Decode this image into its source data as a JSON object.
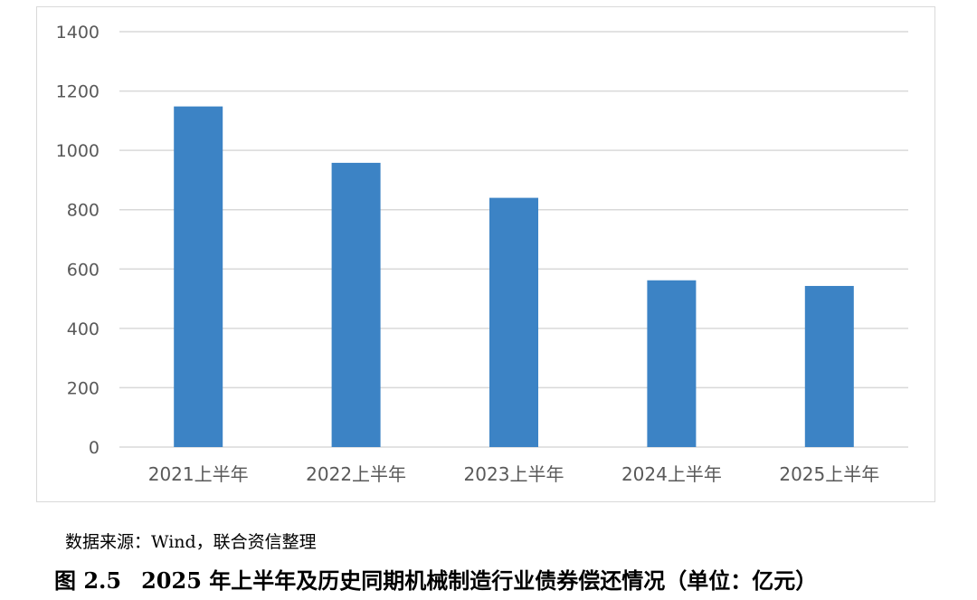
{
  "colors": {
    "bar": "#3c83c5",
    "grid": "#d9d9d9",
    "axis_text": "#595959",
    "frame": "#d9d9d9"
  },
  "chart_data": {
    "type": "bar",
    "title": "",
    "xlabel": "",
    "ylabel": "",
    "categories": [
      "2021上半年",
      "2022上半年",
      "2023上半年",
      "2024上半年",
      "2025上半年"
    ],
    "values": [
      1148,
      958,
      840,
      562,
      543
    ],
    "ylim": [
      0,
      1400
    ],
    "yticks": [
      0,
      200,
      400,
      600,
      800,
      1000,
      1200,
      1400
    ],
    "grid": true,
    "legend": "none"
  },
  "source_note": "数据来源：Wind，联合资信整理",
  "caption": {
    "label": "图 2.5",
    "text": "2025 年上半年及历史同期机械制造行业债券偿还情况（单位：亿元）"
  }
}
